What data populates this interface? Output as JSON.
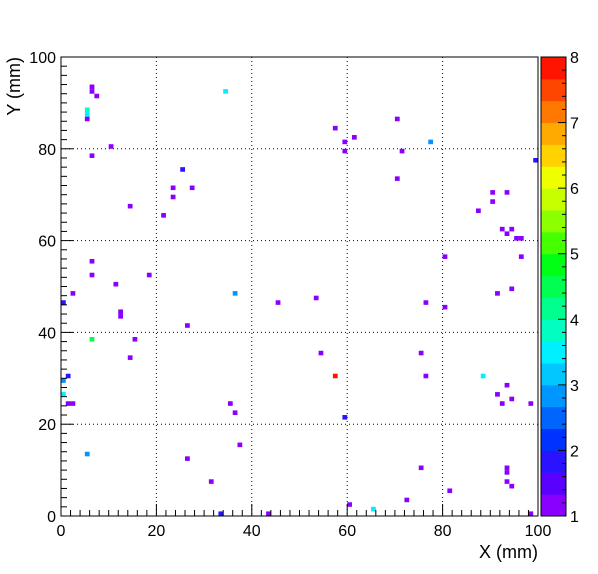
{
  "chart_data": {
    "type": "heatmap",
    "title": "",
    "xlabel": "X (mm)",
    "ylabel": "Y (mm)",
    "xlim": [
      0,
      100
    ],
    "ylim": [
      0,
      100
    ],
    "bin_size": 1,
    "x_ticks": [
      0,
      20,
      40,
      60,
      80,
      100
    ],
    "y_ticks": [
      0,
      20,
      40,
      60,
      80,
      100
    ],
    "grid": true,
    "colorbar": {
      "range": [
        1,
        8
      ],
      "ticks": [
        1,
        2,
        3,
        4,
        5,
        6,
        7,
        8
      ],
      "palette": [
        "#8a00ff",
        "#5a00ff",
        "#2a14ff",
        "#0032ff",
        "#0064ff",
        "#0096ff",
        "#00c8ff",
        "#00f0ff",
        "#00ffc0",
        "#00ff8c",
        "#00ff50",
        "#00ff14",
        "#46ff00",
        "#8cff00",
        "#c8ff00",
        "#f0ff00",
        "#ffd200",
        "#ffaa00",
        "#ff7800",
        "#ff4600",
        "#ff1400"
      ]
    },
    "bins": [
      {
        "x": 6,
        "y": 93,
        "v": 1.2
      },
      {
        "x": 6,
        "y": 92,
        "v": 1.2
      },
      {
        "x": 7,
        "y": 91,
        "v": 1.2
      },
      {
        "x": 5,
        "y": 88,
        "v": 3.8
      },
      {
        "x": 5,
        "y": 87,
        "v": 3.5
      },
      {
        "x": 5,
        "y": 86,
        "v": 1.2
      },
      {
        "x": 34,
        "y": 92,
        "v": 3.6
      },
      {
        "x": 70,
        "y": 86,
        "v": 1.2
      },
      {
        "x": 57,
        "y": 84,
        "v": 1.2
      },
      {
        "x": 61,
        "y": 82,
        "v": 1.2
      },
      {
        "x": 59,
        "y": 81,
        "v": 1.2
      },
      {
        "x": 77,
        "y": 81,
        "v": 2.8
      },
      {
        "x": 10,
        "y": 80,
        "v": 1.2
      },
      {
        "x": 59,
        "y": 79,
        "v": 1.2
      },
      {
        "x": 71,
        "y": 79,
        "v": 1.2
      },
      {
        "x": 6,
        "y": 78,
        "v": 1.2
      },
      {
        "x": 99,
        "y": 77,
        "v": 1.8
      },
      {
        "x": 25,
        "y": 75,
        "v": 1.8
      },
      {
        "x": 70,
        "y": 73,
        "v": 1.2
      },
      {
        "x": 23,
        "y": 71,
        "v": 1.2
      },
      {
        "x": 27,
        "y": 71,
        "v": 1.2
      },
      {
        "x": 90,
        "y": 70,
        "v": 1.2
      },
      {
        "x": 93,
        "y": 70,
        "v": 1.2
      },
      {
        "x": 23,
        "y": 69,
        "v": 1.2
      },
      {
        "x": 90,
        "y": 68,
        "v": 1.2
      },
      {
        "x": 14,
        "y": 67,
        "v": 1.2
      },
      {
        "x": 87,
        "y": 66,
        "v": 1.2
      },
      {
        "x": 21,
        "y": 65,
        "v": 1.2
      },
      {
        "x": 92,
        "y": 62,
        "v": 1.2
      },
      {
        "x": 94,
        "y": 62,
        "v": 1.2
      },
      {
        "x": 93,
        "y": 61,
        "v": 1.2
      },
      {
        "x": 95,
        "y": 60,
        "v": 1.2
      },
      {
        "x": 96,
        "y": 60,
        "v": 1.2
      },
      {
        "x": 96,
        "y": 56,
        "v": 1.2
      },
      {
        "x": 80,
        "y": 56,
        "v": 1.2
      },
      {
        "x": 6,
        "y": 55,
        "v": 1.2
      },
      {
        "x": 6,
        "y": 52,
        "v": 1.2
      },
      {
        "x": 18,
        "y": 52,
        "v": 1.2
      },
      {
        "x": 11,
        "y": 50,
        "v": 1.2
      },
      {
        "x": 94,
        "y": 49,
        "v": 1.2
      },
      {
        "x": 2,
        "y": 48,
        "v": 1.2
      },
      {
        "x": 36,
        "y": 48,
        "v": 2.8
      },
      {
        "x": 91,
        "y": 48,
        "v": 1.2
      },
      {
        "x": 53,
        "y": 47,
        "v": 1.2
      },
      {
        "x": 0,
        "y": 46,
        "v": 1.8
      },
      {
        "x": 45,
        "y": 46,
        "v": 1.2
      },
      {
        "x": 76,
        "y": 46,
        "v": 1.2
      },
      {
        "x": 80,
        "y": 45,
        "v": 1.2
      },
      {
        "x": 12,
        "y": 44,
        "v": 1.2
      },
      {
        "x": 12,
        "y": 43,
        "v": 1.2
      },
      {
        "x": 26,
        "y": 41,
        "v": 1.2
      },
      {
        "x": 6,
        "y": 38,
        "v": 4.6
      },
      {
        "x": 15,
        "y": 38,
        "v": 1.2
      },
      {
        "x": 54,
        "y": 35,
        "v": 1.2
      },
      {
        "x": 75,
        "y": 35,
        "v": 1.2
      },
      {
        "x": 14,
        "y": 34,
        "v": 1.2
      },
      {
        "x": 1,
        "y": 30,
        "v": 1.8
      },
      {
        "x": 0,
        "y": 29,
        "v": 2.8
      },
      {
        "x": 57,
        "y": 30,
        "v": 7.9
      },
      {
        "x": 76,
        "y": 30,
        "v": 1.2
      },
      {
        "x": 88,
        "y": 30,
        "v": 3.6
      },
      {
        "x": 93,
        "y": 28,
        "v": 1.2
      },
      {
        "x": 0,
        "y": 26,
        "v": 3.6
      },
      {
        "x": 91,
        "y": 26,
        "v": 1.2
      },
      {
        "x": 1,
        "y": 24,
        "v": 1.2
      },
      {
        "x": 2,
        "y": 24,
        "v": 1.2
      },
      {
        "x": 35,
        "y": 24,
        "v": 1.2
      },
      {
        "x": 92,
        "y": 24,
        "v": 1.2
      },
      {
        "x": 94,
        "y": 25,
        "v": 1.2
      },
      {
        "x": 98,
        "y": 24,
        "v": 1.2
      },
      {
        "x": 36,
        "y": 22,
        "v": 1.2
      },
      {
        "x": 59,
        "y": 21,
        "v": 1.8
      },
      {
        "x": 37,
        "y": 15,
        "v": 1.2
      },
      {
        "x": 5,
        "y": 13,
        "v": 2.8
      },
      {
        "x": 26,
        "y": 12,
        "v": 1.2
      },
      {
        "x": 75,
        "y": 10,
        "v": 1.2
      },
      {
        "x": 93,
        "y": 10,
        "v": 1.2
      },
      {
        "x": 93,
        "y": 9,
        "v": 1.2
      },
      {
        "x": 31,
        "y": 7,
        "v": 1.2
      },
      {
        "x": 93,
        "y": 7,
        "v": 1.2
      },
      {
        "x": 94,
        "y": 6,
        "v": 1.2
      },
      {
        "x": 81,
        "y": 5,
        "v": 1.2
      },
      {
        "x": 72,
        "y": 3,
        "v": 1.2
      },
      {
        "x": 60,
        "y": 2,
        "v": 1.2
      },
      {
        "x": 65,
        "y": 1,
        "v": 3.6
      },
      {
        "x": 33,
        "y": 0,
        "v": 1.8
      },
      {
        "x": 43,
        "y": 0,
        "v": 1.2
      },
      {
        "x": 98,
        "y": 0,
        "v": 1.2
      }
    ]
  }
}
